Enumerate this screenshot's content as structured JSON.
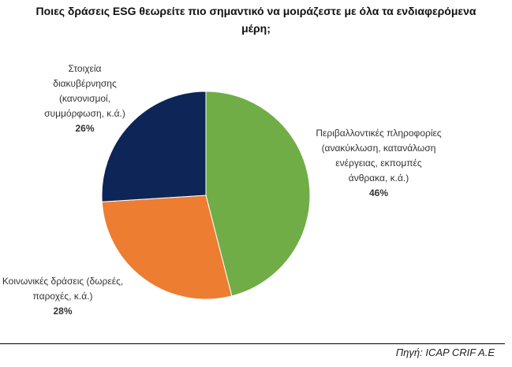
{
  "chart_data": {
    "type": "pie",
    "title": "Ποιες δράσεις ESG θεωρείτε πιο σημαντικό να μοιράζεστε με όλα τα ενδιαφερόμενα μέρη;",
    "categories": [
      "Περιβαλλοντικές πληροφορίες (ανακύκλωση, κατανάλωση ενέργειας, εκπομπές άνθρακα, κ.ά.)",
      "Κοινωνικές δράσεις (δωρεές, παροχές, κ.ά.)",
      "Στοιχεία διακυβέρνησης (κανονισμοί, συμμόρφωση, κ.ά.)"
    ],
    "values": [
      46,
      28,
      26
    ],
    "value_labels": [
      "46%",
      "28%",
      "26%"
    ],
    "colors": [
      "#70ad47",
      "#ed7d31",
      "#0e2557"
    ],
    "source": "Πηγή: ICAP CRIF A.E"
  }
}
